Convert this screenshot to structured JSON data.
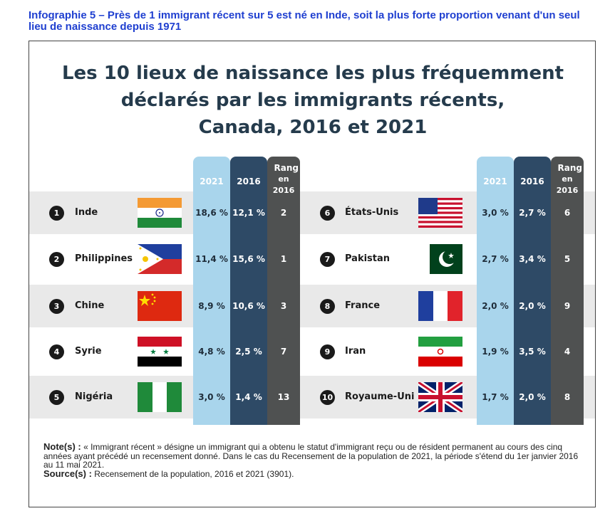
{
  "caption": "Infographie 5 – Près de 1 immigrant récent sur 5 est né en Inde, soit la plus forte proportion venant d'un seul lieu de naissance depuis 1971",
  "title_lines": [
    "Les 10 lieux de naissance les plus fréquemment",
    "déclarés par les immigrants récents,",
    "Canada, 2016 et 2021"
  ],
  "headers": {
    "col_2021": "2021",
    "col_2016": "2016",
    "rank_line1": "Rang",
    "rank_line2": "en 2016"
  },
  "colors": {
    "col_2021": "#a9d5ec",
    "col_2016": "#2e4a66",
    "col_rank": "#4f5151",
    "band": "#e9e9e9",
    "title": "#253b4c",
    "caption": "#1f3fd0"
  },
  "chart_data": {
    "type": "table",
    "title": "Les 10 lieux de naissance les plus fréquemment déclarés par les immigrants récents, Canada, 2016 et 2021",
    "columns": [
      "2021",
      "2016",
      "Rang en 2016"
    ],
    "rows": [
      {
        "rank": "1",
        "country": "Inde",
        "flag": "india-flag-icon",
        "v2021": "18,6 %",
        "v2016": "12,1 %",
        "rank2016": "2"
      },
      {
        "rank": "2",
        "country": "Philippines",
        "flag": "philippines-flag-icon",
        "v2021": "11,4 %",
        "v2016": "15,6 %",
        "rank2016": "1"
      },
      {
        "rank": "3",
        "country": "Chine",
        "flag": "china-flag-icon",
        "v2021": "8,9 %",
        "v2016": "10,6 %",
        "rank2016": "3"
      },
      {
        "rank": "4",
        "country": "Syrie",
        "flag": "syria-flag-icon",
        "v2021": "4,8 %",
        "v2016": "2,5 %",
        "rank2016": "7"
      },
      {
        "rank": "5",
        "country": "Nigéria",
        "flag": "nigeria-flag-icon",
        "v2021": "3,0 %",
        "v2016": "1,4 %",
        "rank2016": "13"
      },
      {
        "rank": "6",
        "country": "États-Unis",
        "flag": "usa-flag-icon",
        "v2021": "3,0 %",
        "v2016": "2,7 %",
        "rank2016": "6"
      },
      {
        "rank": "7",
        "country": "Pakistan",
        "flag": "pakistan-flag-icon",
        "v2021": "2,7 %",
        "v2016": "3,4 %",
        "rank2016": "5"
      },
      {
        "rank": "8",
        "country": "France",
        "flag": "france-flag-icon",
        "v2021": "2,0 %",
        "v2016": "2,0 %",
        "rank2016": "9"
      },
      {
        "rank": "9",
        "country": "Iran",
        "flag": "iran-flag-icon",
        "v2021": "1,9 %",
        "v2016": "3,5 %",
        "rank2016": "4"
      },
      {
        "rank": "10",
        "country": "Royaume-Uni",
        "flag": "uk-flag-icon",
        "v2021": "1,7 %",
        "v2016": "2,0 %",
        "rank2016": "8"
      }
    ]
  },
  "note": {
    "label": "Note(s) :",
    "text": "« Immigrant récent » désigne un immigrant qui a obtenu le statut d'immigrant reçu ou de résident permanent au cours des cinq années ayant précédé un recensement donné. Dans le cas du Recensement de la population de 2021, la période s'étend du 1er janvier 2016 au 11 mai 2021.",
    "source_label": "Source(s) :",
    "source_text": "Recensement de la population, 2016 et 2021 (3901)."
  }
}
